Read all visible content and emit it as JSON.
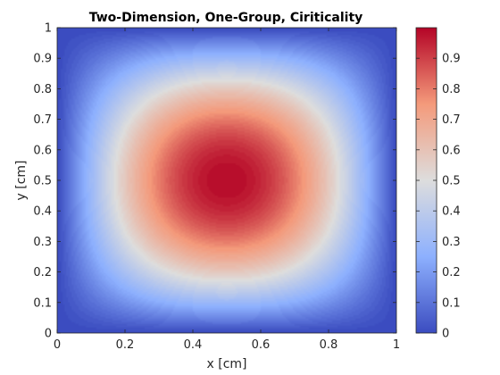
{
  "chart_data": {
    "type": "heatmap",
    "title": "Two-Dimension, One-Group, Ciriticality",
    "xlabel": "x [cm]",
    "ylabel": "y [cm]",
    "xlim": [
      0,
      1
    ],
    "ylim": [
      0,
      1
    ],
    "x_ticks": [
      "0",
      "0.2",
      "0.4",
      "0.6",
      "0.8",
      "1"
    ],
    "y_ticks": [
      "0",
      "0.1",
      "0.2",
      "0.3",
      "0.4",
      "0.5",
      "0.6",
      "0.7",
      "0.8",
      "0.9",
      "1"
    ],
    "colorbar": {
      "range": [
        0,
        1
      ],
      "ticks": [
        "0",
        "0.1",
        "0.2",
        "0.3",
        "0.4",
        "0.5",
        "0.6",
        "0.7",
        "0.8",
        "0.9"
      ],
      "colormap": "coolwarm",
      "colors": [
        "#3b4cc0",
        "#dddddd",
        "#b40426"
      ]
    },
    "field": "sin(pi*x)*sin(pi*y)",
    "peak": {
      "x": 0.5,
      "y": 0.5,
      "value": 1
    }
  }
}
